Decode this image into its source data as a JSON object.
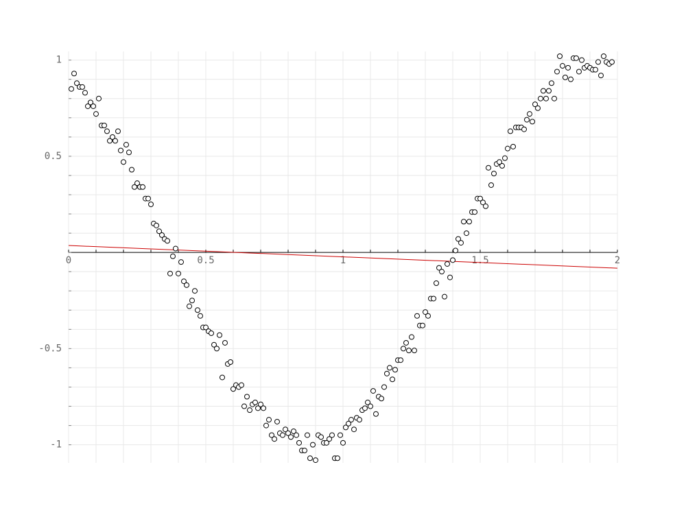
{
  "chart_data": {
    "type": "scatter",
    "x": [
      0.01,
      0.02,
      0.03,
      0.04,
      0.05,
      0.06,
      0.07,
      0.08,
      0.09,
      0.1,
      0.11,
      0.12,
      0.13,
      0.14,
      0.15,
      0.16,
      0.17,
      0.18,
      0.19,
      0.2,
      0.21,
      0.22,
      0.23,
      0.24,
      0.25,
      0.26,
      0.27,
      0.28,
      0.29,
      0.3,
      0.31,
      0.32,
      0.33,
      0.34,
      0.35,
      0.36,
      0.37,
      0.38,
      0.39,
      0.4,
      0.41,
      0.42,
      0.43,
      0.44,
      0.45,
      0.46,
      0.47,
      0.48,
      0.49,
      0.5,
      0.51,
      0.52,
      0.53,
      0.54,
      0.55,
      0.56,
      0.57,
      0.58,
      0.59,
      0.6,
      0.61,
      0.62,
      0.63,
      0.64,
      0.65,
      0.66,
      0.67,
      0.68,
      0.69,
      0.7,
      0.71,
      0.72,
      0.73,
      0.74,
      0.75,
      0.76,
      0.77,
      0.78,
      0.79,
      0.8,
      0.81,
      0.82,
      0.83,
      0.84,
      0.85,
      0.86,
      0.87,
      0.88,
      0.89,
      0.9,
      0.91,
      0.92,
      0.93,
      0.94,
      0.95,
      0.96,
      0.97,
      0.98,
      0.99,
      1.0,
      1.01,
      1.02,
      1.03,
      1.04,
      1.05,
      1.06,
      1.07,
      1.08,
      1.09,
      1.1,
      1.11,
      1.12,
      1.13,
      1.14,
      1.15,
      1.16,
      1.17,
      1.18,
      1.19,
      1.2,
      1.21,
      1.22,
      1.23,
      1.24,
      1.25,
      1.26,
      1.27,
      1.28,
      1.29,
      1.3,
      1.31,
      1.32,
      1.33,
      1.34,
      1.35,
      1.36,
      1.37,
      1.38,
      1.39,
      1.4,
      1.41,
      1.42,
      1.43,
      1.44,
      1.45,
      1.46,
      1.47,
      1.48,
      1.49,
      1.5,
      1.51,
      1.52,
      1.53,
      1.54,
      1.55,
      1.56,
      1.57,
      1.58,
      1.59,
      1.6,
      1.61,
      1.62,
      1.63,
      1.64,
      1.65,
      1.66,
      1.67,
      1.68,
      1.69,
      1.7,
      1.71,
      1.72,
      1.73,
      1.74,
      1.75,
      1.76,
      1.77,
      1.78,
      1.79,
      1.8,
      1.81,
      1.82,
      1.83,
      1.84,
      1.85,
      1.86,
      1.87,
      1.88,
      1.89,
      1.9,
      1.91,
      1.92,
      1.93,
      1.94,
      1.95,
      1.96,
      1.97,
      1.98
    ],
    "values": [
      0.85,
      0.93,
      0.88,
      0.86,
      0.86,
      0.83,
      0.76,
      0.78,
      0.76,
      0.72,
      0.8,
      0.66,
      0.66,
      0.63,
      0.58,
      0.6,
      0.58,
      0.63,
      0.53,
      0.47,
      0.56,
      0.52,
      0.43,
      0.34,
      0.36,
      0.34,
      0.34,
      0.28,
      0.28,
      0.25,
      0.15,
      0.14,
      0.11,
      0.09,
      0.07,
      0.06,
      -0.11,
      -0.02,
      0.02,
      -0.11,
      -0.05,
      -0.15,
      -0.17,
      -0.28,
      -0.25,
      -0.2,
      -0.3,
      -0.33,
      -0.39,
      -0.39,
      -0.41,
      -0.42,
      -0.48,
      -0.5,
      -0.43,
      -0.65,
      -0.47,
      -0.58,
      -0.57,
      -0.71,
      -0.69,
      -0.7,
      -0.69,
      -0.8,
      -0.75,
      -0.82,
      -0.79,
      -0.78,
      -0.81,
      -0.79,
      -0.81,
      -0.9,
      -0.87,
      -0.95,
      -0.97,
      -0.88,
      -0.94,
      -0.95,
      -0.92,
      -0.94,
      -0.96,
      -0.93,
      -0.95,
      -0.99,
      -1.03,
      -1.03,
      -0.95,
      -1.07,
      -1.0,
      -1.08,
      -0.95,
      -0.96,
      -0.99,
      -0.99,
      -0.97,
      -0.95,
      -1.07,
      -1.07,
      -0.95,
      -0.99,
      -0.91,
      -0.89,
      -0.87,
      -0.92,
      -0.86,
      -0.87,
      -0.82,
      -0.81,
      -0.78,
      -0.8,
      -0.72,
      -0.84,
      -0.75,
      -0.76,
      -0.7,
      -0.63,
      -0.6,
      -0.66,
      -0.61,
      -0.56,
      -0.56,
      -0.5,
      -0.47,
      -0.51,
      -0.44,
      -0.51,
      -0.33,
      -0.38,
      -0.38,
      -0.31,
      -0.33,
      -0.24,
      -0.24,
      -0.16,
      -0.08,
      -0.1,
      -0.23,
      -0.06,
      -0.13,
      -0.04,
      0.01,
      0.07,
      0.05,
      0.16,
      0.1,
      0.16,
      0.21,
      0.21,
      0.28,
      0.28,
      0.26,
      0.24,
      0.44,
      0.35,
      0.41,
      0.46,
      0.47,
      0.45,
      0.49,
      0.54,
      0.63,
      0.55,
      0.65,
      0.65,
      0.65,
      0.64,
      0.69,
      0.72,
      0.68,
      0.77,
      0.75,
      0.8,
      0.84,
      0.8,
      0.84,
      0.88,
      0.8,
      0.94,
      1.02,
      0.97,
      0.91,
      0.96,
      0.9,
      1.01,
      1.01,
      0.94,
      1.0,
      0.96,
      0.97,
      0.96,
      0.95,
      0.95,
      0.99,
      0.92,
      1.02,
      0.99,
      0.98,
      0.99
    ],
    "color": "#000000",
    "lines": [
      {
        "x": [
          0,
          2
        ],
        "values": [
          0.036,
          -0.082
        ],
        "color": "#cc0000"
      }
    ],
    "xlim": [
      0,
      2
    ],
    "ylim": [
      -1.094,
      1.045
    ],
    "xticks": [
      0,
      0.5,
      1,
      1.5,
      2
    ],
    "yticks": [
      -1,
      -0.5,
      0.5,
      1
    ],
    "xgrid": [
      0,
      0.1,
      0.2,
      0.3,
      0.4,
      0.5,
      0.6,
      0.7,
      0.8,
      0.9,
      1,
      1.1,
      1.2,
      1.3,
      1.4,
      1.5,
      1.6,
      1.7,
      1.8,
      1.9,
      2
    ],
    "ygrid": [
      -1,
      -0.9,
      -0.8,
      -0.7,
      -0.6,
      -0.5,
      -0.4,
      -0.3,
      -0.2,
      -0.1,
      0,
      0.1,
      0.2,
      0.3,
      0.4,
      0.5,
      0.6,
      0.7,
      0.8,
      0.9,
      1
    ],
    "grid": true
  }
}
